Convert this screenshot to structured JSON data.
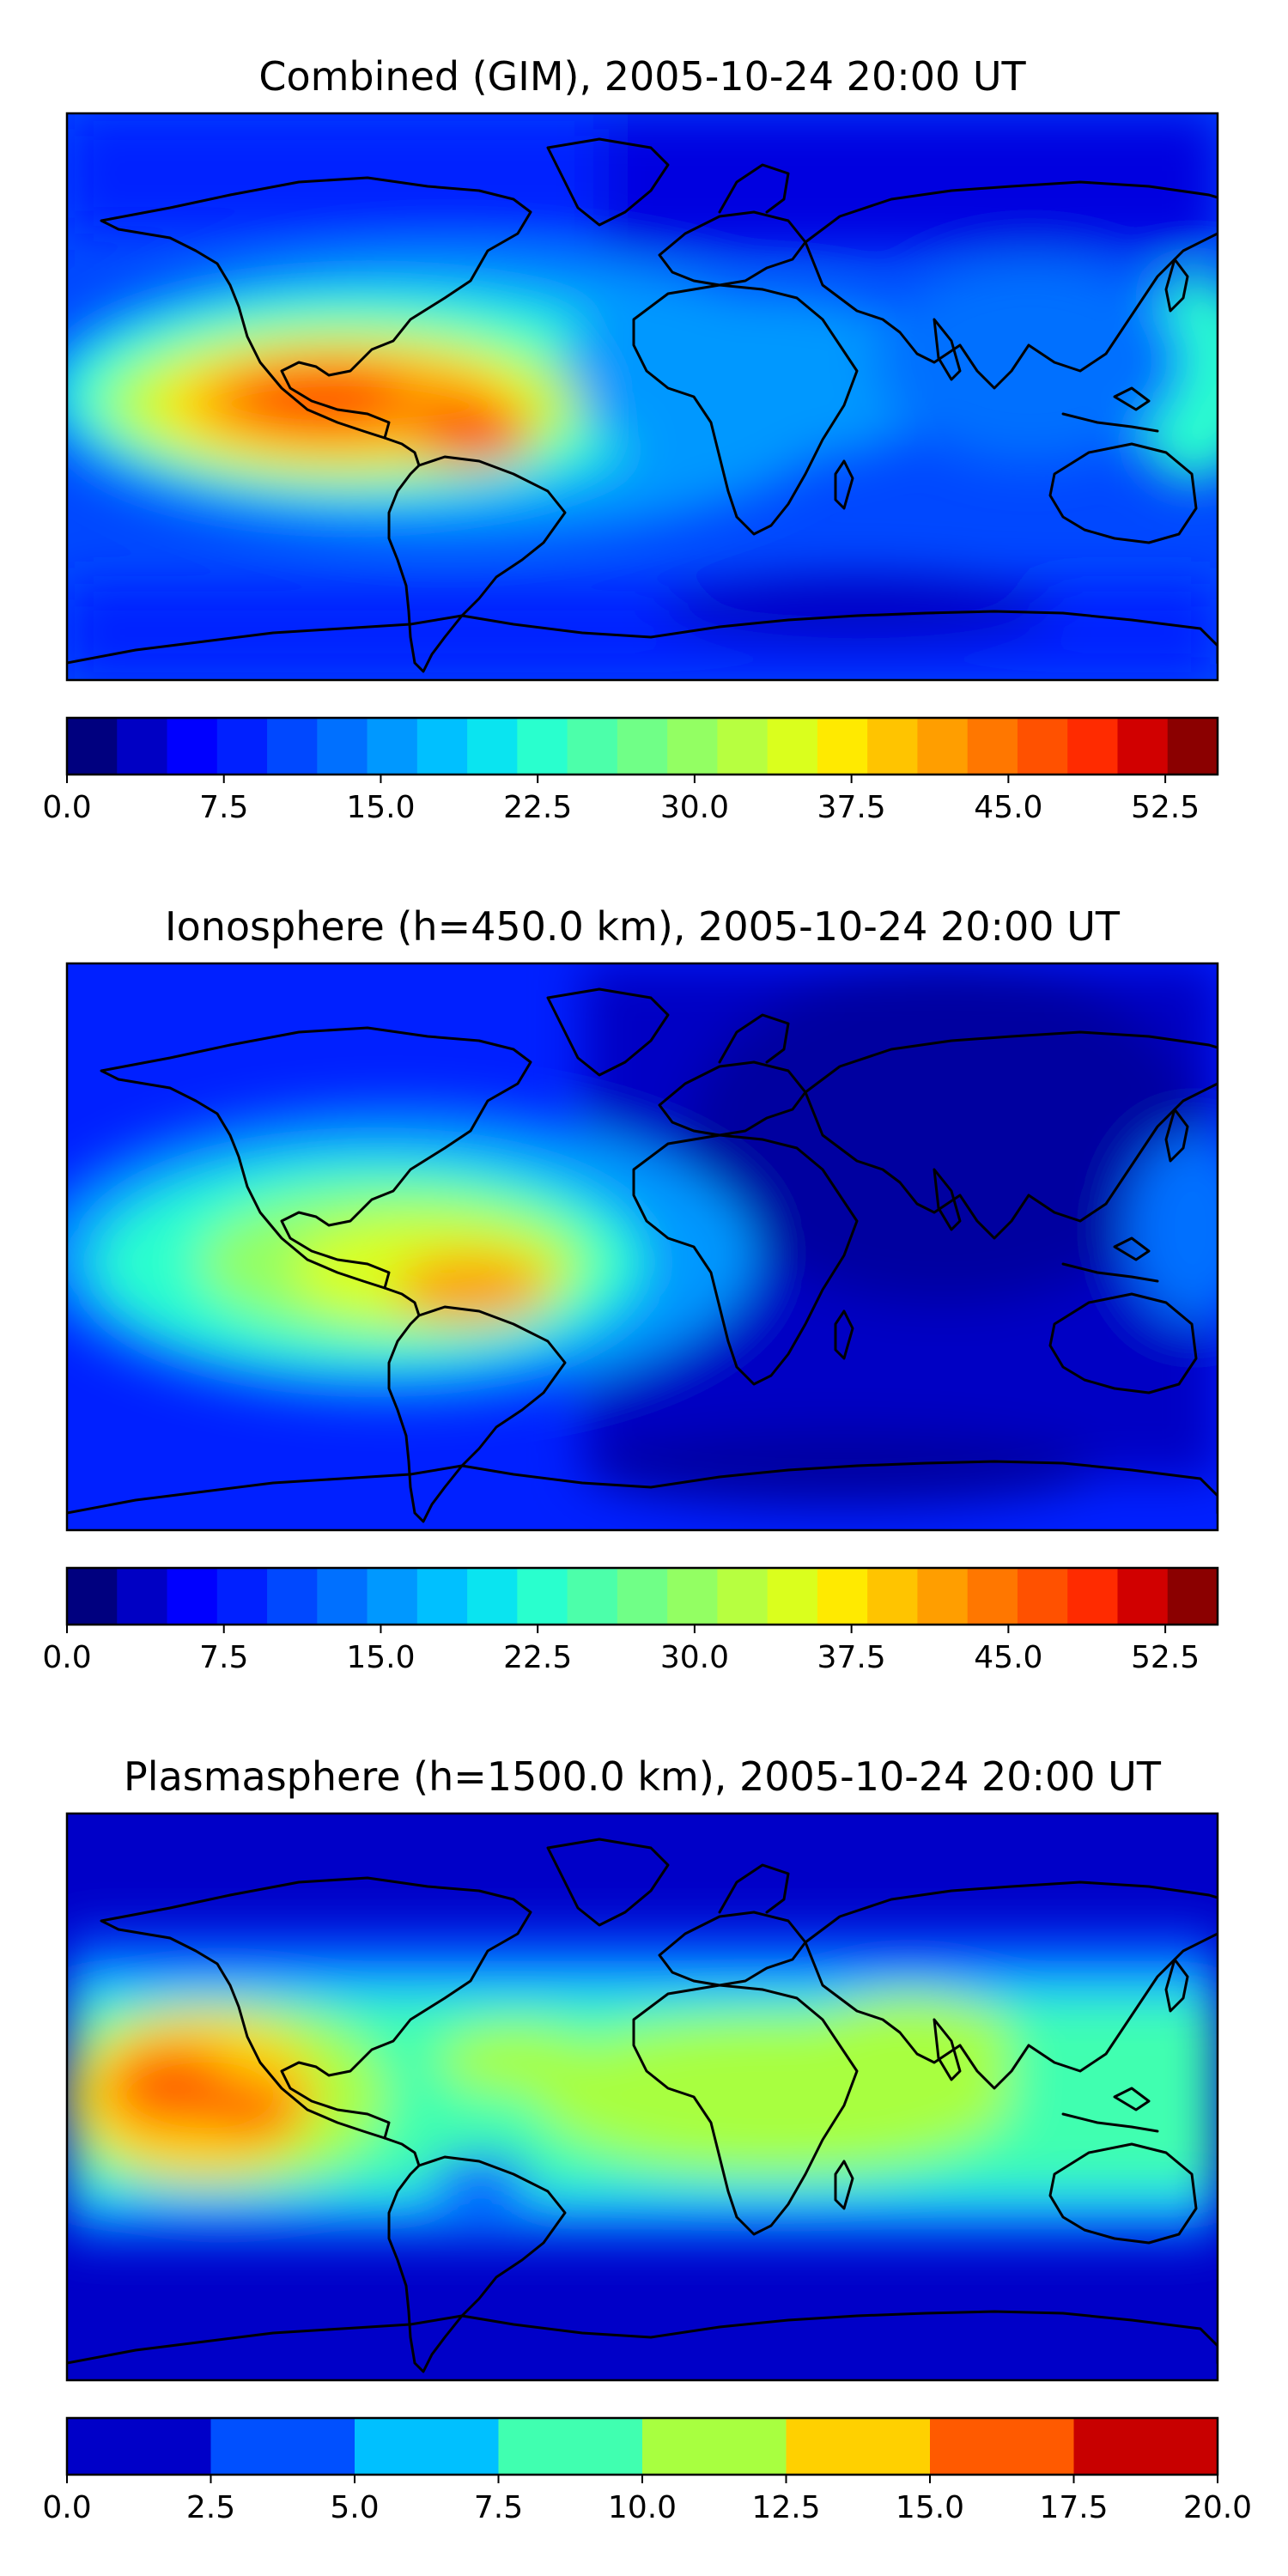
{
  "chart_data": [
    {
      "type": "heatmap",
      "title": "Combined (GIM), 2005-10-24 20:00 UT",
      "colorbar": {
        "min": 0.0,
        "max": 55.0,
        "step": 2.5,
        "ticks": [
          "0.0",
          "7.5",
          "15.0",
          "22.5",
          "30.0",
          "37.5",
          "45.0",
          "52.5"
        ],
        "tick_values": [
          0,
          7.5,
          15,
          22.5,
          30,
          37.5,
          45,
          52.5
        ],
        "colors": [
          "#00007f",
          "#0000c4",
          "#0000ff",
          "#0020ff",
          "#0048ff",
          "#0070ff",
          "#0098ff",
          "#00c0ff",
          "#0ae4f0",
          "#29ffce",
          "#4cffaa",
          "#70ff87",
          "#93ff63",
          "#b7ff40",
          "#daff1d",
          "#ffea00",
          "#ffc400",
          "#ff9e00",
          "#ff7700",
          "#ff5100",
          "#ff2b00",
          "#d10000",
          "#8b0000"
        ]
      },
      "features": [
        {
          "name": "equatorial-anomaly-peak",
          "lon": -55,
          "lat": -8,
          "value": 44
        },
        {
          "name": "western-peak",
          "lon": -95,
          "lat": 3,
          "value": 40
        }
      ]
    },
    {
      "type": "heatmap",
      "title": "Ionosphere  (h=450.0 km), 2005-10-24 20:00 UT",
      "colorbar": {
        "min": 0.0,
        "max": 55.0,
        "step": 2.5,
        "ticks": [
          "0.0",
          "7.5",
          "15.0",
          "22.5",
          "30.0",
          "37.5",
          "45.0",
          "52.5"
        ],
        "tick_values": [
          0,
          7.5,
          15,
          22.5,
          30,
          37.5,
          45,
          52.5
        ],
        "colors": [
          "#00007f",
          "#0000c4",
          "#0000ff",
          "#0020ff",
          "#0048ff",
          "#0070ff",
          "#0098ff",
          "#00c0ff",
          "#0ae4f0",
          "#29ffce",
          "#4cffaa",
          "#70ff87",
          "#93ff63",
          "#b7ff40",
          "#daff1d",
          "#ffea00",
          "#ffc400",
          "#ff9e00",
          "#ff7700",
          "#ff5100",
          "#ff2b00",
          "#d10000",
          "#8b0000"
        ]
      },
      "features": [
        {
          "name": "equatorial-anomaly-peak",
          "lon": -52,
          "lat": -10,
          "value": 38
        },
        {
          "name": "eastern-hemisphere-low",
          "lon": 60,
          "lat": 20,
          "value": 4
        }
      ]
    },
    {
      "type": "heatmap",
      "title": "Plasmasphere (h=1500.0 km), 2005-10-24 20:00 UT",
      "colorbar": {
        "min": 0.0,
        "max": 20.0,
        "step": 2.5,
        "ticks": [
          "0.0",
          "2.5",
          "5.0",
          "7.5",
          "10.0",
          "12.5",
          "15.0",
          "17.5",
          "20.0"
        ],
        "tick_values": [
          0,
          2.5,
          5,
          7.5,
          10,
          12.5,
          15,
          17.5,
          20
        ],
        "colors": [
          "#0000c8",
          "#0050ff",
          "#00c0ff",
          "#40ffb0",
          "#a8ff40",
          "#ffd000",
          "#ff5a00",
          "#c80000"
        ]
      },
      "features": [
        {
          "name": "pacific-peak",
          "lon": -150,
          "lat": 0,
          "value": 16
        },
        {
          "name": "africa-band",
          "lon": 15,
          "lat": 5,
          "value": 11
        }
      ]
    }
  ]
}
